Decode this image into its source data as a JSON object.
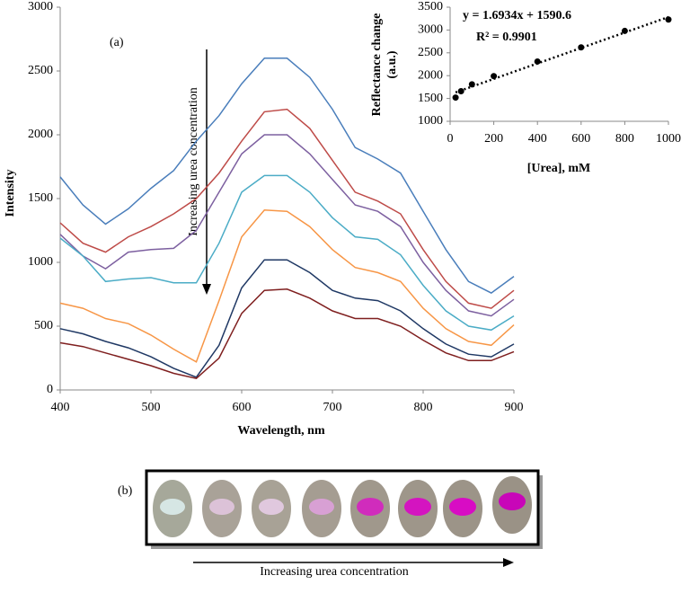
{
  "chart_data": [
    {
      "type": "line",
      "panel_label": "(a)",
      "annotation": "Increasing urea concentration",
      "xlabel": "Wavelength, nm",
      "ylabel": "Intensity",
      "xlim": [
        400,
        900
      ],
      "xticks": [
        400,
        500,
        600,
        700,
        800,
        900
      ],
      "ylim": [
        0,
        3000
      ],
      "yticks": [
        0,
        500,
        1000,
        1500,
        2000,
        2500,
        3000
      ],
      "grid": false,
      "x": [
        400,
        425,
        450,
        475,
        500,
        525,
        550,
        575,
        600,
        625,
        650,
        675,
        700,
        725,
        750,
        775,
        800,
        825,
        850,
        875,
        900
      ],
      "series": [
        {
          "color": "#4a7ebb",
          "values": [
            1670,
            1450,
            1300,
            1420,
            1580,
            1720,
            1950,
            2150,
            2400,
            2600,
            2600,
            2450,
            2200,
            1900,
            1810,
            1700,
            1400,
            1100,
            850,
            760,
            890
          ]
        },
        {
          "color": "#be4b48",
          "values": [
            1310,
            1150,
            1080,
            1200,
            1280,
            1380,
            1500,
            1700,
            1950,
            2180,
            2200,
            2050,
            1800,
            1550,
            1480,
            1380,
            1100,
            850,
            680,
            640,
            780
          ]
        },
        {
          "color": "#7d60a0",
          "values": [
            1220,
            1050,
            950,
            1080,
            1100,
            1110,
            1250,
            1550,
            1850,
            2000,
            2000,
            1850,
            1650,
            1450,
            1400,
            1280,
            1000,
            780,
            620,
            580,
            710
          ]
        },
        {
          "color": "#4bacc6",
          "values": [
            1190,
            1050,
            850,
            870,
            880,
            840,
            840,
            1150,
            1550,
            1680,
            1680,
            1550,
            1350,
            1200,
            1180,
            1060,
            820,
            620,
            500,
            470,
            580
          ]
        },
        {
          "color": "#f79646",
          "values": [
            680,
            640,
            560,
            520,
            430,
            320,
            220,
            700,
            1200,
            1410,
            1400,
            1280,
            1100,
            960,
            920,
            850,
            640,
            480,
            380,
            350,
            510
          ]
        },
        {
          "color": "#1f3864",
          "values": [
            480,
            440,
            380,
            330,
            260,
            170,
            100,
            350,
            800,
            1020,
            1020,
            920,
            780,
            720,
            700,
            620,
            480,
            360,
            280,
            260,
            360
          ]
        },
        {
          "color": "#7f1f1f",
          "values": [
            370,
            340,
            290,
            240,
            190,
            130,
            90,
            250,
            600,
            780,
            790,
            720,
            620,
            560,
            560,
            500,
            390,
            290,
            230,
            230,
            300
          ]
        }
      ]
    },
    {
      "type": "scatter",
      "equation": "y = 1.6934x + 1590.6",
      "r_squared": "R² = 0.9901",
      "xlabel": "[Urea], mM",
      "ylabel": [
        "Reflectance change",
        "(a.u.)"
      ],
      "xlim": [
        0,
        1000
      ],
      "xticks": [
        0,
        200,
        400,
        600,
        800,
        1000
      ],
      "ylim": [
        1000,
        3500
      ],
      "yticks": [
        1000,
        1500,
        2000,
        2500,
        3000,
        3500
      ],
      "color": "#000000",
      "x": [
        25,
        50,
        100,
        200,
        400,
        600,
        800,
        1000
      ],
      "values": [
        1520,
        1660,
        1810,
        1990,
        2310,
        2620,
        2980,
        3230
      ],
      "trendline": {
        "x": [
          25,
          1000
        ],
        "values": [
          1633,
          3284
        ]
      }
    }
  ],
  "panel_b": {
    "label": "(b)",
    "caption": "Increasing urea concentration"
  }
}
